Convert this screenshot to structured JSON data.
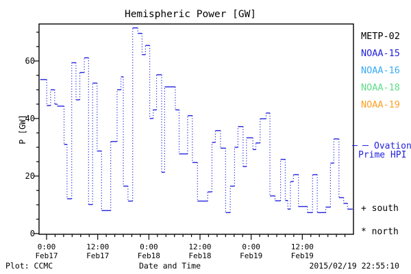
{
  "title": "Hemispheric Power [GW]",
  "axes": {
    "y_label": "P [GW]",
    "x_label": "Date and Time",
    "y_tick_labels": [
      "0",
      "20",
      "40",
      "60"
    ],
    "x_tick_labels": [
      {
        "time": "0:00",
        "date": "Feb17"
      },
      {
        "time": "12:00",
        "date": "Feb17"
      },
      {
        "time": "0:00",
        "date": "Feb18"
      },
      {
        "time": "12:00",
        "date": "Feb18"
      },
      {
        "time": "0:00",
        "date": "Feb19"
      },
      {
        "time": "12:00",
        "date": "Feb19"
      }
    ]
  },
  "legend": {
    "satellites": [
      {
        "label": "METP-02",
        "color": "#000000"
      },
      {
        "label": "NOAA-15",
        "color": "#2222dd"
      },
      {
        "label": "NOAA-16",
        "color": "#38a9f5"
      },
      {
        "label": "NOAA-18",
        "color": "#5cdd87"
      },
      {
        "label": "NOAA-19",
        "color": "#ff9f24"
      }
    ],
    "ovation": {
      "label_line1": "Ovation",
      "label_line2": "Prime HPI",
      "color": "#2222dd"
    },
    "markers": {
      "south_symbol": "+",
      "south_label": "south",
      "north_symbol": "*",
      "north_label": "north"
    }
  },
  "footer": {
    "left": "Plot: CCMC",
    "center": "Date and Time",
    "right": "2015/02/19 22:55:10"
  },
  "chart_data": {
    "type": "line",
    "style": "step plot; solid horizontal segments joined by dotted vertical connectors",
    "title": "Hemispheric Power [GW]",
    "xlabel": "Date and Time",
    "ylabel": "P [GW]",
    "series_name": "Ovation Prime HPI",
    "line_color": "#2222dd",
    "ylim": [
      0,
      72.9
    ],
    "y_major_ticks": [
      0,
      20,
      40,
      60
    ],
    "y_minor_step": 5,
    "x_range_hours_from_feb17_0000": [
      -1.77,
      72
    ],
    "x_major_tick_hours": [
      0,
      12,
      24,
      36,
      48,
      60
    ],
    "x_minor_step_hours": 2,
    "x_tick_datetimes": [
      "0:00 Feb17",
      "12:00 Feb17",
      "0:00 Feb18",
      "12:00 Feb18",
      "0:00 Feb19",
      "12:00 Feb19"
    ],
    "segments_t0_t1_gw": [
      [
        -1.5,
        0.05,
        53.5
      ],
      [
        0.05,
        0.95,
        44.5
      ],
      [
        0.95,
        1.9,
        50.0
      ],
      [
        1.9,
        2.5,
        45.0
      ],
      [
        2.5,
        4.1,
        44.3
      ],
      [
        4.1,
        4.8,
        31.0
      ],
      [
        4.8,
        5.9,
        12.1
      ],
      [
        5.9,
        6.9,
        59.4
      ],
      [
        6.9,
        7.8,
        46.5
      ],
      [
        7.8,
        8.85,
        56.0
      ],
      [
        8.85,
        9.85,
        61.1
      ],
      [
        9.85,
        10.8,
        10.1
      ],
      [
        10.8,
        11.85,
        52.3
      ],
      [
        11.85,
        12.9,
        28.7
      ],
      [
        12.9,
        15.05,
        8.0
      ],
      [
        15.05,
        16.55,
        32.0
      ],
      [
        16.55,
        17.45,
        50.0
      ],
      [
        17.45,
        18.0,
        54.5
      ],
      [
        18.0,
        19.1,
        16.5
      ],
      [
        19.1,
        20.2,
        11.3
      ],
      [
        20.2,
        21.4,
        71.5
      ],
      [
        21.4,
        22.4,
        69.6
      ],
      [
        22.4,
        23.2,
        62.2
      ],
      [
        23.2,
        24.2,
        65.4
      ],
      [
        24.2,
        25.0,
        40.0
      ],
      [
        25.0,
        25.8,
        43.0
      ],
      [
        25.8,
        27.0,
        55.2
      ],
      [
        27.0,
        27.7,
        21.3
      ],
      [
        27.7,
        30.2,
        51.0
      ],
      [
        30.2,
        31.1,
        43.0
      ],
      [
        31.1,
        33.1,
        27.7
      ],
      [
        33.1,
        34.2,
        41.0
      ],
      [
        34.2,
        35.4,
        24.7
      ],
      [
        35.4,
        37.8,
        11.3
      ],
      [
        37.8,
        38.8,
        14.5
      ],
      [
        38.8,
        39.6,
        31.7
      ],
      [
        39.6,
        40.8,
        35.8
      ],
      [
        40.8,
        42.0,
        29.7
      ],
      [
        42.0,
        43.1,
        7.3
      ],
      [
        43.1,
        44.1,
        16.5
      ],
      [
        44.1,
        44.9,
        30.0
      ],
      [
        44.9,
        46.1,
        37.2
      ],
      [
        46.1,
        46.9,
        23.3
      ],
      [
        46.9,
        48.4,
        33.3
      ],
      [
        48.4,
        49.1,
        29.2
      ],
      [
        49.1,
        50.1,
        31.5
      ],
      [
        50.1,
        51.5,
        39.9
      ],
      [
        51.5,
        52.4,
        41.9
      ],
      [
        52.4,
        53.6,
        13.1
      ],
      [
        53.6,
        54.9,
        11.4
      ],
      [
        54.9,
        56.0,
        25.8
      ],
      [
        56.0,
        56.6,
        11.5
      ],
      [
        56.6,
        57.2,
        8.5
      ],
      [
        57.2,
        57.9,
        18.1
      ],
      [
        57.9,
        59.1,
        20.5
      ],
      [
        59.1,
        61.2,
        9.4
      ],
      [
        61.2,
        62.4,
        7.3
      ],
      [
        62.4,
        63.5,
        20.5
      ],
      [
        63.5,
        65.5,
        7.3
      ],
      [
        65.5,
        66.6,
        9.2
      ],
      [
        66.6,
        67.4,
        24.5
      ],
      [
        67.4,
        68.6,
        32.9
      ],
      [
        68.6,
        69.7,
        12.5
      ],
      [
        69.7,
        70.6,
        10.5
      ],
      [
        70.6,
        71.8,
        8.5
      ]
    ]
  }
}
